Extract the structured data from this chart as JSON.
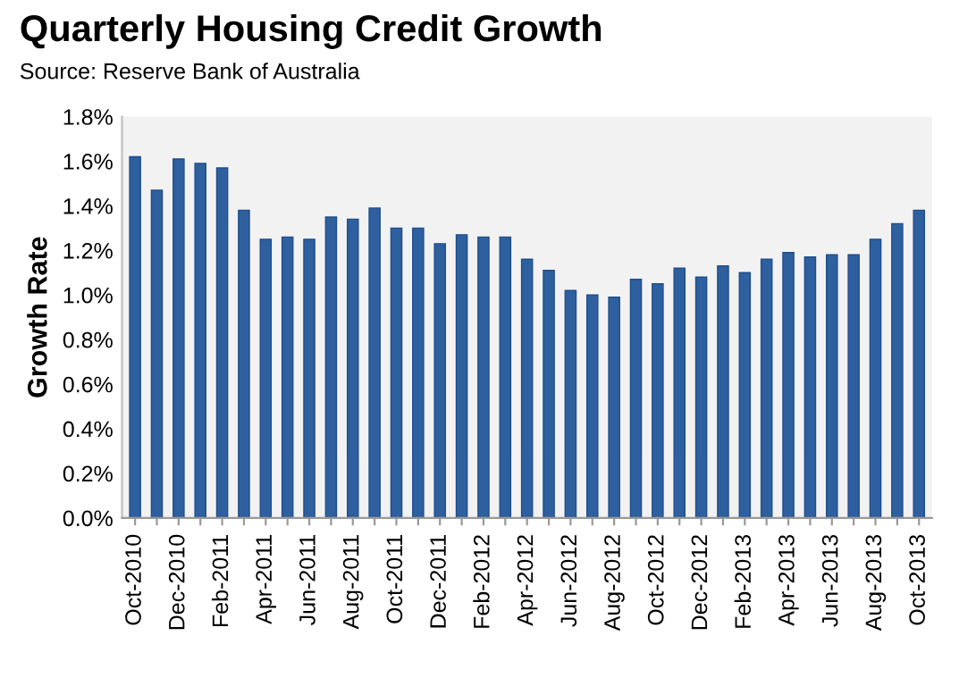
{
  "chart_data": {
    "type": "bar",
    "title": "Quarterly Housing Credit Growth",
    "subtitle": "Source: Reserve Bank of Australia",
    "ylabel": "Growth Rate",
    "categories": [
      "Oct-2010",
      null,
      "Dec-2010",
      null,
      "Feb-2011",
      null,
      "Apr-2011",
      null,
      "Jun-2011",
      null,
      "Aug-2011",
      null,
      "Oct-2011",
      null,
      "Dec-2011",
      null,
      "Feb-2012",
      null,
      "Apr-2012",
      null,
      "Jun-2012",
      null,
      "Aug-2012",
      null,
      "Oct-2012",
      null,
      "Dec-2012",
      null,
      "Feb-2013",
      null,
      "Apr-2013",
      null,
      "Jun-2013",
      null,
      "Aug-2013",
      null,
      "Oct-2013"
    ],
    "values": [
      1.62,
      1.47,
      1.61,
      1.59,
      1.57,
      1.38,
      1.25,
      1.26,
      1.25,
      1.35,
      1.34,
      1.39,
      1.3,
      1.3,
      1.23,
      1.27,
      1.26,
      1.26,
      1.16,
      1.11,
      1.02,
      1.0,
      0.99,
      1.07,
      1.05,
      1.12,
      1.08,
      1.13,
      1.1,
      1.16,
      1.19,
      1.17,
      1.18,
      1.18,
      1.25,
      1.32,
      1.38
    ],
    "color": "#2e5f9e",
    "ylim": [
      0,
      1.8
    ],
    "yticks": [
      {
        "value": 0,
        "label": "0.0%"
      },
      {
        "value": 0.2,
        "label": "0.2%"
      },
      {
        "value": 0.4,
        "label": "0.4%"
      },
      {
        "value": 0.6,
        "label": "0.6%"
      },
      {
        "value": 0.8,
        "label": "0.8%"
      },
      {
        "value": 1.0,
        "label": "1.0%"
      },
      {
        "value": 1.2,
        "label": "1.2%"
      },
      {
        "value": 1.4,
        "label": "1.4%"
      },
      {
        "value": 1.6,
        "label": "1.6%"
      },
      {
        "value": 1.8,
        "label": "1.8%"
      }
    ],
    "grid": false,
    "legend": false
  }
}
